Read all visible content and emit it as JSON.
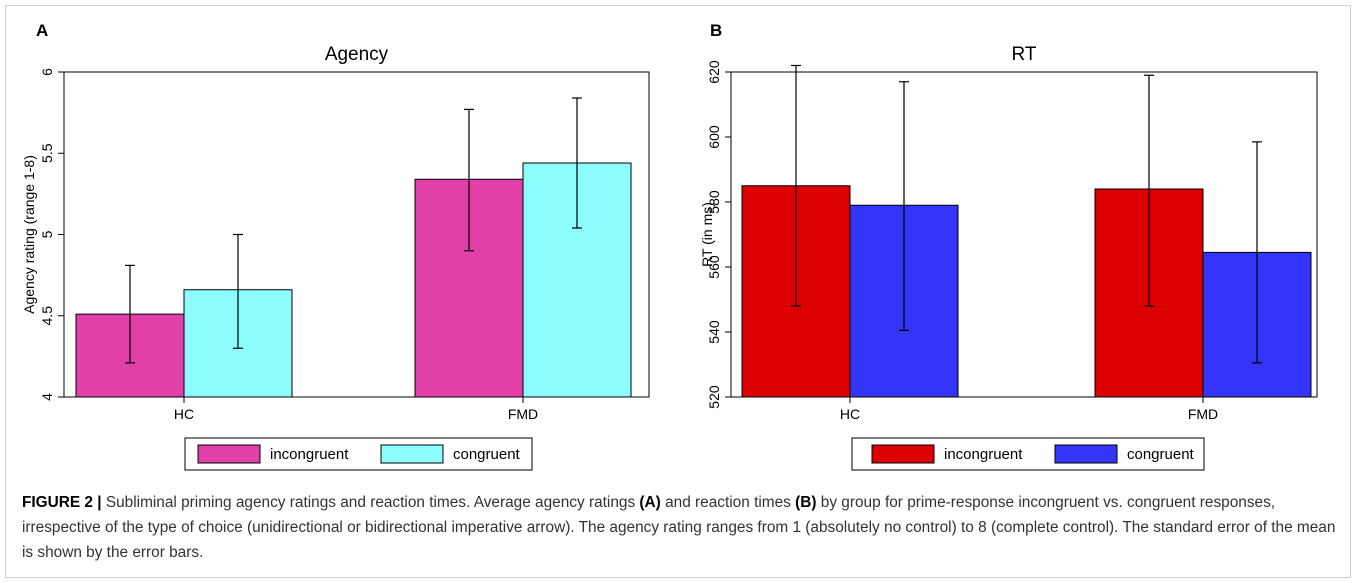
{
  "chart_data": [
    {
      "panel_label": "A",
      "type": "bar",
      "title": "Agency",
      "ylabel": "Agency rating (range 1-8)",
      "xlabel": "",
      "categories": [
        "HC",
        "FMD"
      ],
      "ylim": [
        4,
        6
      ],
      "yticks": [
        4,
        4.5,
        5,
        5.5,
        6
      ],
      "ytick_labels": [
        "4",
        "4.5",
        "5",
        "5.5",
        "6"
      ],
      "grid": false,
      "legend_position": "bottom",
      "series": [
        {
          "name": "incongruent",
          "color": "#e040a8",
          "values": [
            4.51,
            5.34
          ],
          "error_low": [
            4.21,
            4.9
          ],
          "error_high": [
            4.81,
            5.77
          ]
        },
        {
          "name": "congruent",
          "color": "#8cfcfc",
          "values": [
            4.66,
            5.44
          ],
          "error_low": [
            4.3,
            5.04
          ],
          "error_high": [
            5.0,
            5.84
          ]
        }
      ]
    },
    {
      "panel_label": "B",
      "type": "bar",
      "title": "RT",
      "ylabel": "RT (in ms)",
      "xlabel": "",
      "categories": [
        "HC",
        "FMD"
      ],
      "ylim": [
        520,
        620
      ],
      "yticks": [
        520,
        540,
        560,
        580,
        600,
        620
      ],
      "ytick_labels": [
        "520",
        "540",
        "560",
        "580",
        "600",
        "620"
      ],
      "grid": false,
      "legend_position": "bottom",
      "series": [
        {
          "name": "incongruent",
          "color": "#dd0000",
          "values": [
            585,
            584
          ],
          "error_low": [
            548,
            548
          ],
          "error_high": [
            622,
            619
          ]
        },
        {
          "name": "congruent",
          "color": "#3535fa",
          "values": [
            579,
            564.5
          ],
          "error_low": [
            540.5,
            530.5
          ],
          "error_high": [
            617,
            598.5
          ]
        }
      ]
    }
  ],
  "caption": {
    "figure_label": "FIGURE 2 |",
    "title": "Subliminal priming agency ratings and reaction times.",
    "text_1": "Average agency ratings",
    "ref_a": "(A)",
    "text_2": "and reaction times",
    "ref_b": "(B)",
    "text_3": "by group for prime-response incongruent vs. congruent responses, irrespective of the type of choice (unidirectional or bidirectional imperative arrow). The agency rating ranges from 1 (absolutely no control) to 8 (complete control). The standard error of the mean is shown by the error bars."
  }
}
